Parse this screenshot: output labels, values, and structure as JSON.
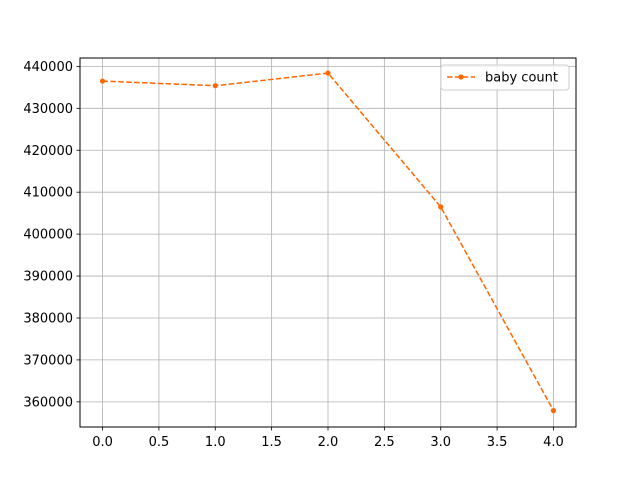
{
  "chart_data": {
    "type": "line",
    "title": "",
    "xlabel": "",
    "ylabel": "",
    "x": [
      0.0,
      1.0,
      2.0,
      3.0,
      4.0
    ],
    "series": [
      {
        "name": "baby count",
        "values": [
          436500,
          435400,
          438400,
          406500,
          357900
        ],
        "color": "#ff6600",
        "linestyle": "dashed",
        "marker": "dot"
      }
    ],
    "xlim": [
      -0.2,
      4.2
    ],
    "ylim": [
      354000,
      442000
    ],
    "xticks": [
      0.0,
      0.5,
      1.0,
      1.5,
      2.0,
      2.5,
      3.0,
      3.5,
      4.0
    ],
    "xtick_labels": [
      "0.0",
      "0.5",
      "1.0",
      "1.5",
      "2.0",
      "2.5",
      "3.0",
      "3.5",
      "4.0"
    ],
    "yticks": [
      360000,
      370000,
      380000,
      390000,
      400000,
      410000,
      420000,
      430000,
      440000
    ],
    "ytick_labels": [
      "360000",
      "370000",
      "380000",
      "390000",
      "400000",
      "410000",
      "420000",
      "430000",
      "440000"
    ],
    "grid": true,
    "legend": "top-right"
  }
}
